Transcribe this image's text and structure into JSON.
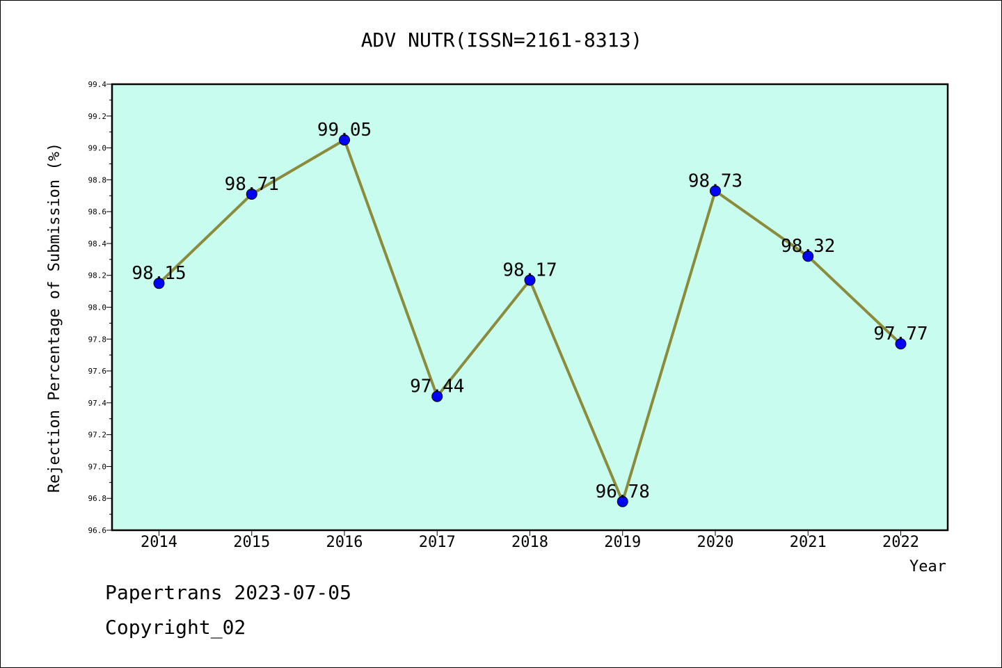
{
  "chart_data": {
    "type": "line",
    "title": "ADV NUTR(ISSN=2161-8313)",
    "xlabel": "Year",
    "ylabel": "Rejection Percentage of Submission (%)",
    "categories": [
      "2014",
      "2015",
      "2016",
      "2017",
      "2018",
      "2019",
      "2020",
      "2021",
      "2022"
    ],
    "values": [
      98.15,
      98.71,
      99.05,
      97.44,
      98.17,
      96.78,
      98.73,
      98.32,
      97.77
    ],
    "data_labels": [
      "98.15",
      "98.71",
      "99.05",
      "97.44",
      "98.17",
      "96.78",
      "98.73",
      "98.32",
      "97.77"
    ],
    "ylim": [
      96.6,
      99.4
    ],
    "yticks": [
      "96.6",
      "96.8",
      "97.0",
      "97.2",
      "97.4",
      "97.6",
      "97.8",
      "98.0",
      "98.2",
      "98.4",
      "98.6",
      "98.8",
      "99.0",
      "99.2",
      "99.4"
    ],
    "grid": false,
    "colors": {
      "plot_background": "#c8fcee",
      "line": "#8b8b3c",
      "marker": "#0000ff"
    }
  },
  "footer": {
    "line1": "Papertrans 2023-07-05",
    "line2": "Copyright_02"
  }
}
